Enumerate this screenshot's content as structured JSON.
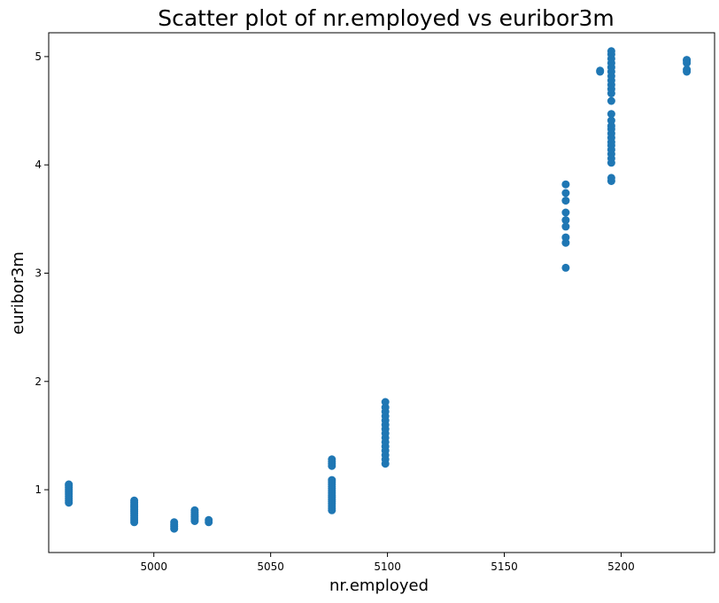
{
  "chart_data": {
    "type": "scatter",
    "title": "Scatter plot of nr.employed vs euribor3m",
    "xlabel": "nr.employed",
    "ylabel": "euribor3m",
    "xlim": [
      4955,
      5240
    ],
    "ylim": [
      0.42,
      5.22
    ],
    "xticks": [
      5000,
      5050,
      5100,
      5150,
      5200
    ],
    "yticks": [
      1,
      2,
      3,
      4,
      5
    ],
    "grid": false,
    "marker_color": "#1f77b4",
    "series": [
      {
        "values": [
          [
            4963.6,
            0.88
          ],
          [
            4963.6,
            0.9
          ],
          [
            4963.6,
            0.92
          ],
          [
            4963.6,
            0.94
          ],
          [
            4963.6,
            0.96
          ],
          [
            4963.6,
            0.98
          ],
          [
            4963.6,
            1.0
          ],
          [
            4963.6,
            1.02
          ],
          [
            4963.6,
            1.04
          ],
          [
            4963.6,
            1.05
          ],
          [
            4991.6,
            0.7
          ],
          [
            4991.6,
            0.72
          ],
          [
            4991.6,
            0.74
          ],
          [
            4991.6,
            0.76
          ],
          [
            4991.6,
            0.78
          ],
          [
            4991.6,
            0.8
          ],
          [
            4991.6,
            0.82
          ],
          [
            4991.6,
            0.84
          ],
          [
            4991.6,
            0.86
          ],
          [
            4991.6,
            0.88
          ],
          [
            4991.6,
            0.9
          ],
          [
            5008.7,
            0.64
          ],
          [
            5008.7,
            0.66
          ],
          [
            5008.7,
            0.68
          ],
          [
            5008.7,
            0.7
          ],
          [
            5017.5,
            0.71
          ],
          [
            5017.5,
            0.73
          ],
          [
            5017.5,
            0.75
          ],
          [
            5017.5,
            0.77
          ],
          [
            5017.5,
            0.79
          ],
          [
            5017.5,
            0.81
          ],
          [
            5023.5,
            0.7
          ],
          [
            5023.5,
            0.72
          ],
          [
            5076.2,
            0.81
          ],
          [
            5076.2,
            0.83
          ],
          [
            5076.2,
            0.85
          ],
          [
            5076.2,
            0.87
          ],
          [
            5076.2,
            0.89
          ],
          [
            5076.2,
            0.91
          ],
          [
            5076.2,
            0.93
          ],
          [
            5076.2,
            0.95
          ],
          [
            5076.2,
            0.97
          ],
          [
            5076.2,
            0.99
          ],
          [
            5076.2,
            1.01
          ],
          [
            5076.2,
            1.03
          ],
          [
            5076.2,
            1.05
          ],
          [
            5076.2,
            1.07
          ],
          [
            5076.2,
            1.09
          ],
          [
            5076.2,
            1.22
          ],
          [
            5076.2,
            1.24
          ],
          [
            5076.2,
            1.26
          ],
          [
            5076.2,
            1.28
          ],
          [
            5099.1,
            1.24
          ],
          [
            5099.1,
            1.28
          ],
          [
            5099.1,
            1.32
          ],
          [
            5099.1,
            1.36
          ],
          [
            5099.1,
            1.4
          ],
          [
            5099.1,
            1.44
          ],
          [
            5099.1,
            1.48
          ],
          [
            5099.1,
            1.52
          ],
          [
            5099.1,
            1.56
          ],
          [
            5099.1,
            1.6
          ],
          [
            5099.1,
            1.64
          ],
          [
            5099.1,
            1.68
          ],
          [
            5099.1,
            1.72
          ],
          [
            5099.1,
            1.76
          ],
          [
            5099.1,
            1.81
          ],
          [
            5176.3,
            3.05
          ],
          [
            5176.3,
            3.28
          ],
          [
            5176.3,
            3.33
          ],
          [
            5176.3,
            3.43
          ],
          [
            5176.3,
            3.49
          ],
          [
            5176.3,
            3.56
          ],
          [
            5176.3,
            3.67
          ],
          [
            5176.3,
            3.74
          ],
          [
            5176.3,
            3.82
          ],
          [
            5191.0,
            4.86
          ],
          [
            5191.0,
            4.87
          ],
          [
            5195.8,
            3.85
          ],
          [
            5195.8,
            3.88
          ],
          [
            5195.8,
            4.02
          ],
          [
            5195.8,
            4.06
          ],
          [
            5195.8,
            4.1
          ],
          [
            5195.8,
            4.14
          ],
          [
            5195.8,
            4.18
          ],
          [
            5195.8,
            4.21
          ],
          [
            5195.8,
            4.25
          ],
          [
            5195.8,
            4.29
          ],
          [
            5195.8,
            4.33
          ],
          [
            5195.8,
            4.36
          ],
          [
            5195.8,
            4.41
          ],
          [
            5195.8,
            4.47
          ],
          [
            5195.8,
            4.59
          ],
          [
            5195.8,
            4.66
          ],
          [
            5195.8,
            4.7
          ],
          [
            5195.8,
            4.74
          ],
          [
            5195.8,
            4.78
          ],
          [
            5195.8,
            4.82
          ],
          [
            5195.8,
            4.86
          ],
          [
            5195.8,
            4.9
          ],
          [
            5195.8,
            4.94
          ],
          [
            5195.8,
            4.98
          ],
          [
            5195.8,
            5.02
          ],
          [
            5195.8,
            5.05
          ],
          [
            5228.1,
            4.86
          ],
          [
            5228.1,
            4.88
          ],
          [
            5228.1,
            4.94
          ],
          [
            5228.1,
            4.96
          ],
          [
            5228.1,
            4.97
          ]
        ]
      }
    ]
  }
}
